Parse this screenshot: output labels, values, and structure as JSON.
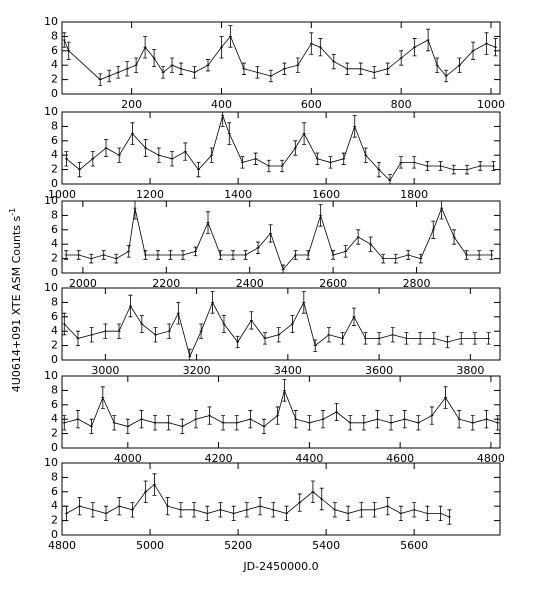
{
  "ylabel": "4U0614+091 XTE ASM Counts s",
  "ylabel_sup": "-1",
  "xlabel": "JD-2450000.0",
  "chart_data": [
    {
      "type": "line",
      "color": "#000000",
      "xlim": [
        45,
        1020
      ],
      "ylim": [
        0,
        10
      ],
      "xticks": [
        200,
        400,
        600,
        800,
        1000
      ],
      "yticks": [
        0,
        2,
        4,
        6,
        8,
        10
      ],
      "x": [
        50,
        60,
        130,
        150,
        170,
        190,
        210,
        230,
        250,
        270,
        290,
        310,
        340,
        370,
        400,
        420,
        450,
        480,
        510,
        540,
        570,
        600,
        620,
        650,
        680,
        710,
        740,
        770,
        800,
        830,
        860,
        880,
        900,
        930,
        960,
        990,
        1010
      ],
      "values": [
        7.5,
        6,
        2,
        2.5,
        3,
        3.5,
        4,
        6.5,
        5,
        3,
        4,
        3.5,
        3,
        4,
        6.5,
        8,
        3.5,
        3,
        2.5,
        3.5,
        4,
        7,
        6.5,
        4.5,
        3.5,
        3.5,
        3,
        3.5,
        5,
        6.5,
        7.5,
        4,
        2.5,
        4,
        6,
        7,
        6.5
      ],
      "errors": [
        1,
        1.2,
        0.8,
        0.8,
        0.8,
        1,
        1,
        1.5,
        1.2,
        0.8,
        1,
        0.8,
        0.8,
        0.8,
        1.5,
        1.5,
        0.8,
        0.8,
        0.8,
        0.8,
        1,
        1.5,
        1.2,
        1,
        0.8,
        0.8,
        0.8,
        0.8,
        1,
        1.2,
        1.5,
        1,
        0.8,
        1,
        1.2,
        1.5,
        1.2
      ]
    },
    {
      "type": "line",
      "color": "#000000",
      "xlim": [
        1000,
        1995
      ],
      "ylim": [
        0,
        10
      ],
      "xticks": [
        1000,
        1200,
        1400,
        1600,
        1800
      ],
      "yticks": [
        0,
        2,
        4,
        6,
        8,
        10
      ],
      "x": [
        1010,
        1040,
        1070,
        1100,
        1130,
        1160,
        1190,
        1220,
        1250,
        1280,
        1310,
        1340,
        1365,
        1380,
        1410,
        1440,
        1470,
        1500,
        1530,
        1550,
        1580,
        1610,
        1640,
        1665,
        1690,
        1720,
        1745,
        1770,
        1800,
        1830,
        1860,
        1890,
        1920,
        1950,
        1980
      ],
      "values": [
        3.5,
        2,
        3.5,
        5,
        4,
        7,
        5,
        4,
        3.5,
        4.5,
        2,
        4,
        9.5,
        7,
        3,
        3.5,
        2.5,
        2.5,
        5,
        7,
        3.5,
        3,
        3.5,
        8,
        4,
        2,
        0.5,
        3,
        3,
        2.5,
        2.5,
        2,
        2,
        2.5,
        2.5
      ],
      "errors": [
        1,
        1,
        1,
        1.2,
        1,
        1.5,
        1.2,
        1,
        1,
        1.2,
        1,
        1,
        1.5,
        1.5,
        0.8,
        0.8,
        0.8,
        0.8,
        1,
        1.5,
        0.8,
        0.8,
        0.8,
        1.5,
        1,
        1,
        0.8,
        0.8,
        0.8,
        0.6,
        0.6,
        0.6,
        0.6,
        0.6,
        0.6
      ]
    },
    {
      "type": "line",
      "color": "#000000",
      "xlim": [
        1950,
        3000
      ],
      "ylim": [
        0,
        10
      ],
      "xticks": [
        2000,
        2200,
        2400,
        2600,
        2800
      ],
      "yticks": [
        0,
        2,
        4,
        6,
        8,
        10
      ],
      "x": [
        1960,
        1990,
        2020,
        2050,
        2080,
        2110,
        2125,
        2150,
        2180,
        2210,
        2240,
        2270,
        2300,
        2330,
        2360,
        2390,
        2420,
        2450,
        2480,
        2510,
        2540,
        2570,
        2600,
        2630,
        2660,
        2690,
        2720,
        2750,
        2780,
        2810,
        2840,
        2860,
        2890,
        2920,
        2950,
        2980
      ],
      "values": [
        2.5,
        2.5,
        2,
        2.5,
        2,
        3,
        9,
        2.5,
        2.5,
        2.5,
        2.5,
        3,
        7,
        2.5,
        2.5,
        2.5,
        3.5,
        5.5,
        0.5,
        2.5,
        2.5,
        8,
        2.5,
        3,
        5,
        4,
        2,
        2,
        2.5,
        2,
        6,
        9,
        5,
        2.5,
        2.5,
        2.5
      ],
      "errors": [
        0.6,
        0.6,
        0.6,
        0.6,
        0.6,
        0.8,
        1.5,
        0.6,
        0.6,
        0.6,
        0.6,
        0.6,
        1.5,
        0.6,
        0.6,
        0.6,
        0.8,
        1.2,
        0.6,
        0.6,
        0.6,
        1.5,
        0.6,
        0.8,
        1,
        1,
        0.6,
        0.6,
        0.6,
        0.6,
        1.2,
        1.5,
        1,
        0.6,
        0.6,
        0.6
      ]
    },
    {
      "type": "line",
      "color": "#000000",
      "xlim": [
        2905,
        3865
      ],
      "ylim": [
        0,
        10
      ],
      "xticks": [
        3000,
        3200,
        3400,
        3600,
        3800
      ],
      "yticks": [
        0,
        2,
        4,
        6,
        8,
        10
      ],
      "x": [
        2910,
        2940,
        2970,
        3000,
        3030,
        3055,
        3080,
        3110,
        3140,
        3160,
        3185,
        3210,
        3235,
        3260,
        3290,
        3320,
        3350,
        3380,
        3410,
        3435,
        3460,
        3490,
        3520,
        3545,
        3570,
        3600,
        3630,
        3660,
        3690,
        3720,
        3750,
        3780,
        3810,
        3840
      ],
      "values": [
        5,
        3,
        3.5,
        4,
        4,
        7.5,
        5,
        3.5,
        4,
        6.5,
        0.5,
        4,
        8,
        5,
        2.5,
        5.5,
        3,
        3.5,
        5,
        8,
        2,
        3.5,
        3,
        6,
        3,
        3,
        3.5,
        3,
        3,
        3,
        2.5,
        3,
        3,
        3
      ],
      "errors": [
        1.5,
        1,
        1,
        1,
        1,
        1.5,
        1.2,
        1,
        1,
        1.5,
        1,
        1,
        1.5,
        1.2,
        0.8,
        1.2,
        0.8,
        1,
        1.2,
        1.5,
        0.8,
        1,
        0.8,
        1.2,
        0.8,
        0.8,
        1,
        0.8,
        0.8,
        0.8,
        0.8,
        0.8,
        0.8,
        0.8
      ]
    },
    {
      "type": "line",
      "color": "#000000",
      "xlim": [
        3855,
        4820
      ],
      "ylim": [
        0,
        10
      ],
      "xticks": [
        4000,
        4200,
        4400,
        4600,
        4800
      ],
      "yticks": [
        0,
        2,
        4,
        6,
        8,
        10
      ],
      "x": [
        3860,
        3890,
        3920,
        3945,
        3970,
        4000,
        4030,
        4060,
        4090,
        4120,
        4150,
        4180,
        4210,
        4240,
        4270,
        4300,
        4330,
        4345,
        4370,
        4400,
        4430,
        4460,
        4490,
        4520,
        4550,
        4580,
        4610,
        4640,
        4670,
        4700,
        4730,
        4760,
        4790,
        4815
      ],
      "values": [
        3.5,
        4,
        3,
        7,
        3.5,
        3,
        4,
        3.5,
        3.5,
        3,
        4,
        4.5,
        3.5,
        3.5,
        4,
        3,
        4.5,
        8,
        4,
        3.5,
        4,
        5,
        3.5,
        3.5,
        4,
        3.5,
        4,
        3.5,
        4.5,
        7,
        4,
        3.5,
        4,
        3.5
      ],
      "errors": [
        1,
        1.2,
        1,
        1.5,
        1,
        1,
        1.2,
        1,
        1,
        1,
        1.2,
        1.2,
        1,
        1,
        1.2,
        1,
        1.2,
        1.5,
        1.2,
        1,
        1.2,
        1.2,
        1,
        1,
        1.2,
        1,
        1.2,
        1,
        1.2,
        1.5,
        1.2,
        1,
        1.2,
        1
      ]
    },
    {
      "type": "line",
      "color": "#000000",
      "xlim": [
        4800,
        5795
      ],
      "ylim": [
        0,
        10
      ],
      "xticks": [
        4800,
        5000,
        5200,
        5400,
        5600
      ],
      "yticks": [
        0,
        2,
        4,
        6,
        8,
        10
      ],
      "x": [
        4810,
        4840,
        4870,
        4900,
        4930,
        4960,
        4990,
        5010,
        5040,
        5070,
        5100,
        5130,
        5160,
        5190,
        5220,
        5250,
        5280,
        5310,
        5340,
        5370,
        5390,
        5420,
        5450,
        5480,
        5510,
        5540,
        5570,
        5600,
        5630,
        5660,
        5680
      ],
      "values": [
        3,
        4,
        3.5,
        3,
        4,
        3.5,
        6,
        7,
        4,
        3.5,
        3.5,
        3,
        3.5,
        3,
        3.5,
        4,
        3.5,
        3,
        4.5,
        6,
        5,
        3.5,
        3,
        3.5,
        3.5,
        4,
        3,
        3.5,
        3,
        3,
        2.5
      ],
      "errors": [
        1,
        1.2,
        1,
        1,
        1.2,
        1,
        1.5,
        1.5,
        1.2,
        1,
        1,
        1,
        1,
        1,
        1,
        1.2,
        1,
        1,
        1.2,
        1.5,
        1.5,
        1,
        1,
        1,
        1,
        1.2,
        1,
        1,
        1,
        1,
        1
      ]
    }
  ]
}
